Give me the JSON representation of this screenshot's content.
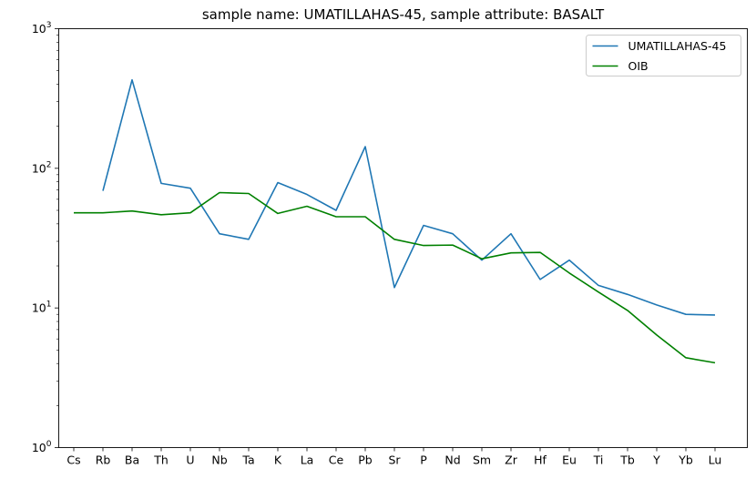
{
  "chart_data": {
    "type": "line",
    "title": "sample name: UMATILLAHAS-45, sample attribute: BASALT",
    "xlabel": "",
    "ylabel": "",
    "yscale": "log",
    "ylim": [
      1,
      1000
    ],
    "y_tick_labels": [
      {
        "value": 1,
        "base": "10",
        "exp": "0"
      },
      {
        "value": 10,
        "base": "10",
        "exp": "1"
      },
      {
        "value": 100,
        "base": "10",
        "exp": "2"
      },
      {
        "value": 1000,
        "base": "10",
        "exp": "3"
      }
    ],
    "categories": [
      "Cs",
      "Rb",
      "Ba",
      "Th",
      "U",
      "Nb",
      "Ta",
      "K",
      "La",
      "Ce",
      "Pb",
      "Sr",
      "P",
      "Nd",
      "Sm",
      "Zr",
      "Hf",
      "Eu",
      "Ti",
      "Tb",
      "Y",
      "Yb",
      "Lu"
    ],
    "grid": false,
    "legend_position": "top-right",
    "series": [
      {
        "name": "UMATILLAHAS-45",
        "color": "#1f77b4",
        "values": [
          null,
          69,
          430,
          78,
          72,
          34,
          31,
          79,
          65,
          50,
          143,
          14,
          39,
          34,
          22,
          34,
          16,
          22,
          14.5,
          12.5,
          10.5,
          9,
          8.9
        ]
      },
      {
        "name": "OIB",
        "color": "#008000",
        "values": [
          48,
          48,
          49.5,
          46.5,
          48,
          67,
          66,
          47.5,
          53.5,
          45,
          45,
          31,
          28,
          28.2,
          22.5,
          24.8,
          25,
          17.8,
          13,
          9.6,
          6.4,
          4.4,
          4.05
        ]
      }
    ]
  }
}
